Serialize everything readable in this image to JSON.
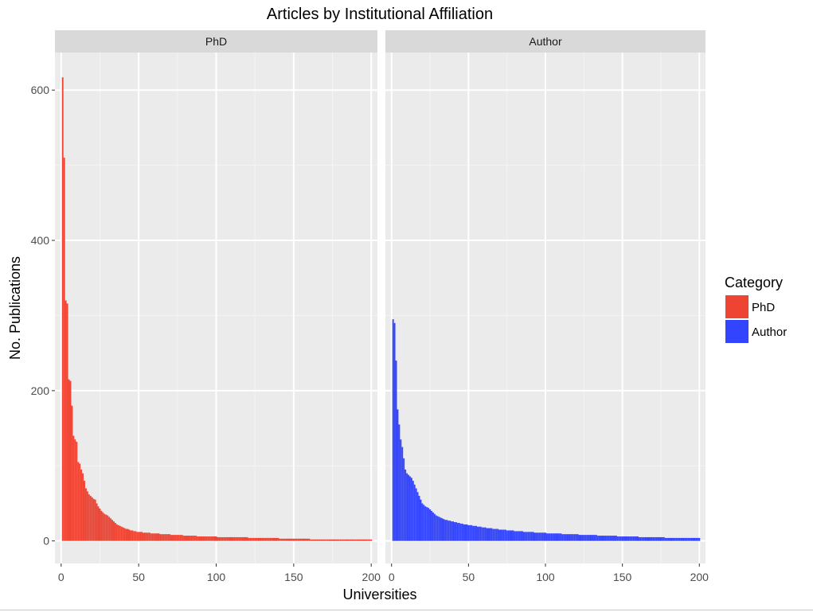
{
  "chart_data": {
    "type": "bar",
    "title": "Articles by Institutional Affiliation",
    "xlabel": "Universities",
    "ylabel": "No. Publications",
    "xlim": [
      -4,
      204
    ],
    "ylim": [
      -30,
      650
    ],
    "xticks": [
      0,
      50,
      100,
      150,
      200
    ],
    "yticks": [
      0,
      200,
      400,
      600
    ],
    "grid": true,
    "legend": {
      "title": "Category",
      "placement": "right"
    },
    "facets": [
      {
        "label": "PhD",
        "series": "PhD"
      },
      {
        "label": "Author",
        "series": "Author"
      }
    ],
    "series": [
      {
        "name": "PhD",
        "color": "#ee4433",
        "x": [
          1,
          2,
          3,
          4,
          5,
          6,
          7,
          8,
          9,
          10,
          11,
          12,
          13,
          14,
          15,
          16,
          17,
          18,
          19,
          20,
          21,
          22,
          23,
          24,
          25,
          26,
          27,
          28,
          29,
          30,
          31,
          32,
          33,
          34,
          35,
          36,
          37,
          38,
          39,
          40,
          41,
          42,
          43,
          44,
          45,
          46,
          47,
          48,
          49,
          50,
          51,
          52,
          53,
          54,
          55,
          56,
          57,
          58,
          59,
          60,
          61,
          62,
          63,
          64,
          65,
          66,
          67,
          68,
          69,
          70,
          71,
          72,
          73,
          74,
          75,
          76,
          77,
          78,
          79,
          80,
          81,
          82,
          83,
          84,
          85,
          86,
          87,
          88,
          89,
          90,
          91,
          92,
          93,
          94,
          95,
          96,
          97,
          98,
          99,
          100,
          101,
          102,
          103,
          104,
          105,
          106,
          107,
          108,
          109,
          110,
          111,
          112,
          113,
          114,
          115,
          116,
          117,
          118,
          119,
          120,
          121,
          122,
          123,
          124,
          125,
          126,
          127,
          128,
          129,
          130,
          131,
          132,
          133,
          134,
          135,
          136,
          137,
          138,
          139,
          140,
          141,
          142,
          143,
          144,
          145,
          146,
          147,
          148,
          149,
          150,
          151,
          152,
          153,
          154,
          155,
          156,
          157,
          158,
          159,
          160,
          161,
          162,
          163,
          164,
          165,
          166,
          167,
          168,
          169,
          170,
          171,
          172,
          173,
          174,
          175,
          176,
          177,
          178,
          179,
          180,
          181,
          182,
          183,
          184,
          185,
          186,
          187,
          188,
          189,
          190,
          191,
          192,
          193,
          194,
          195,
          196,
          197,
          198,
          199,
          200
        ],
        "values": [
          617,
          510,
          320,
          316,
          215,
          213,
          180,
          140,
          135,
          132,
          105,
          103,
          95,
          90,
          80,
          70,
          66,
          62,
          60,
          58,
          56,
          55,
          50,
          46,
          43,
          40,
          38,
          36,
          35,
          34,
          32,
          30,
          28,
          26,
          24,
          22,
          21,
          20,
          19,
          18,
          17,
          16,
          16,
          15,
          14,
          14,
          13,
          13,
          12,
          12,
          12,
          12,
          11,
          11,
          11,
          11,
          11,
          10,
          10,
          10,
          10,
          10,
          10,
          9,
          9,
          9,
          9,
          9,
          9,
          9,
          8,
          8,
          8,
          8,
          8,
          8,
          8,
          8,
          7,
          7,
          7,
          7,
          7,
          7,
          7,
          7,
          7,
          6,
          6,
          6,
          6,
          6,
          6,
          6,
          6,
          6,
          6,
          6,
          6,
          6,
          5,
          5,
          5,
          5,
          5,
          5,
          5,
          5,
          5,
          5,
          5,
          5,
          5,
          5,
          5,
          5,
          5,
          5,
          5,
          5,
          4,
          4,
          4,
          4,
          4,
          4,
          4,
          4,
          4,
          4,
          4,
          4,
          4,
          4,
          4,
          4,
          4,
          4,
          4,
          4,
          3,
          3,
          3,
          3,
          3,
          3,
          3,
          3,
          3,
          3,
          3,
          3,
          3,
          3,
          3,
          3,
          3,
          3,
          3,
          3,
          2,
          2,
          2,
          2,
          2,
          2,
          2,
          2,
          2,
          2,
          2,
          2,
          2,
          2,
          2,
          2,
          2,
          2,
          2,
          2,
          2,
          2,
          2,
          2,
          2,
          2,
          2,
          2,
          2,
          2,
          2,
          2,
          2,
          2,
          2,
          2,
          2,
          2,
          2,
          2
        ]
      },
      {
        "name": "Author",
        "color": "#3344ff",
        "x": [
          1,
          2,
          3,
          4,
          5,
          6,
          7,
          8,
          9,
          10,
          11,
          12,
          13,
          14,
          15,
          16,
          17,
          18,
          19,
          20,
          21,
          22,
          23,
          24,
          25,
          26,
          27,
          28,
          29,
          30,
          31,
          32,
          33,
          34,
          35,
          36,
          37,
          38,
          39,
          40,
          41,
          42,
          43,
          44,
          45,
          46,
          47,
          48,
          49,
          50,
          51,
          52,
          53,
          54,
          55,
          56,
          57,
          58,
          59,
          60,
          61,
          62,
          63,
          64,
          65,
          66,
          67,
          68,
          69,
          70,
          71,
          72,
          73,
          74,
          75,
          76,
          77,
          78,
          79,
          80,
          81,
          82,
          83,
          84,
          85,
          86,
          87,
          88,
          89,
          90,
          91,
          92,
          93,
          94,
          95,
          96,
          97,
          98,
          99,
          100,
          101,
          102,
          103,
          104,
          105,
          106,
          107,
          108,
          109,
          110,
          111,
          112,
          113,
          114,
          115,
          116,
          117,
          118,
          119,
          120,
          121,
          122,
          123,
          124,
          125,
          126,
          127,
          128,
          129,
          130,
          131,
          132,
          133,
          134,
          135,
          136,
          137,
          138,
          139,
          140,
          141,
          142,
          143,
          144,
          145,
          146,
          147,
          148,
          149,
          150,
          151,
          152,
          153,
          154,
          155,
          156,
          157,
          158,
          159,
          160,
          161,
          162,
          163,
          164,
          165,
          166,
          167,
          168,
          169,
          170,
          171,
          172,
          173,
          174,
          175,
          176,
          177,
          178,
          179,
          180,
          181,
          182,
          183,
          184,
          185,
          186,
          187,
          188,
          189,
          190,
          191,
          192,
          193,
          194,
          195,
          196,
          197,
          198,
          199,
          200
        ],
        "values": [
          295,
          290,
          240,
          175,
          155,
          135,
          125,
          110,
          95,
          90,
          88,
          86,
          84,
          80,
          75,
          70,
          65,
          60,
          55,
          50,
          48,
          46,
          45,
          44,
          42,
          40,
          38,
          36,
          34,
          33,
          32,
          31,
          30,
          29,
          28,
          28,
          27,
          27,
          26,
          26,
          25,
          25,
          24,
          24,
          23,
          23,
          22,
          22,
          22,
          21,
          21,
          21,
          20,
          20,
          20,
          19,
          19,
          19,
          18,
          18,
          18,
          17,
          17,
          17,
          17,
          16,
          16,
          16,
          16,
          15,
          15,
          15,
          15,
          15,
          14,
          14,
          14,
          14,
          14,
          13,
          13,
          13,
          13,
          13,
          13,
          12,
          12,
          12,
          12,
          12,
          12,
          12,
          11,
          11,
          11,
          11,
          11,
          11,
          11,
          11,
          10,
          10,
          10,
          10,
          10,
          10,
          10,
          10,
          10,
          10,
          9,
          9,
          9,
          9,
          9,
          9,
          9,
          9,
          9,
          9,
          9,
          8,
          8,
          8,
          8,
          8,
          8,
          8,
          8,
          8,
          8,
          8,
          8,
          7,
          7,
          7,
          7,
          7,
          7,
          7,
          7,
          7,
          7,
          7,
          7,
          7,
          6,
          6,
          6,
          6,
          6,
          6,
          6,
          6,
          6,
          6,
          6,
          6,
          6,
          6,
          5,
          5,
          5,
          5,
          5,
          5,
          5,
          5,
          5,
          5,
          5,
          5,
          5,
          5,
          5,
          5,
          5,
          4,
          4,
          4,
          4,
          4,
          4,
          4,
          4,
          4,
          4,
          4,
          4,
          4,
          4,
          4,
          4,
          4,
          4,
          4,
          4,
          4,
          4,
          4
        ]
      }
    ]
  }
}
